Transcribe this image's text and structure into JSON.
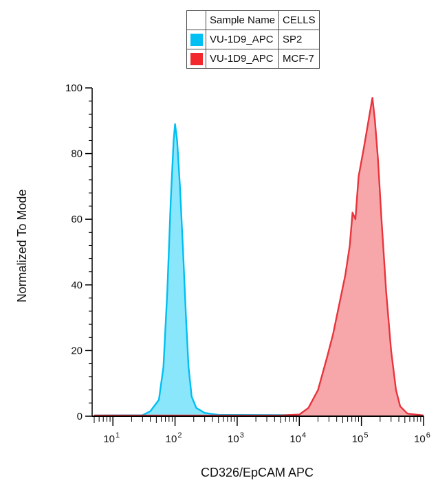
{
  "legend": {
    "header": {
      "col1": "Sample Name",
      "col2": "CELLS"
    },
    "rows": [
      {
        "sample": "VU-1D9_APC",
        "cells": "SP2",
        "color": "#00bff3"
      },
      {
        "sample": "VU-1D9_APC",
        "cells": "MCF-7",
        "color": "#f2282e"
      }
    ]
  },
  "chart_data": {
    "type": "area",
    "xlabel": "CD326/EpCAM APC",
    "ylabel": "Normalized To Mode",
    "xscale": "log",
    "xlim": [
      5,
      1000000
    ],
    "ylim": [
      0,
      100
    ],
    "yticks": [
      "0",
      "20",
      "40",
      "60",
      "80",
      "100"
    ],
    "xticks": [
      {
        "base": "10",
        "exp": "1"
      },
      {
        "base": "10",
        "exp": "2"
      },
      {
        "base": "10",
        "exp": "3"
      },
      {
        "base": "10",
        "exp": "4"
      },
      {
        "base": "10",
        "exp": "5"
      },
      {
        "base": "10",
        "exp": "6"
      }
    ],
    "grid": false,
    "series": [
      {
        "name": "SP2",
        "color": "#00bff3",
        "fill": "#8ae6fa",
        "points": [
          [
            5,
            0.2
          ],
          [
            30,
            0.3
          ],
          [
            40,
            1.5
          ],
          [
            55,
            5
          ],
          [
            65,
            15
          ],
          [
            75,
            38
          ],
          [
            85,
            65
          ],
          [
            95,
            84
          ],
          [
            100,
            89
          ],
          [
            108,
            84
          ],
          [
            120,
            70
          ],
          [
            135,
            50
          ],
          [
            150,
            30
          ],
          [
            165,
            15
          ],
          [
            185,
            6
          ],
          [
            220,
            2.5
          ],
          [
            300,
            1
          ],
          [
            500,
            0.4
          ],
          [
            1000000,
            0.2
          ]
        ]
      },
      {
        "name": "MCF-7",
        "color": "#e8343c",
        "fill": "#f7a7aa",
        "points": [
          [
            5,
            0.2
          ],
          [
            5000,
            0.2
          ],
          [
            10000,
            0.5
          ],
          [
            14000,
            2.5
          ],
          [
            20000,
            8
          ],
          [
            28000,
            18
          ],
          [
            35000,
            25
          ],
          [
            45000,
            35
          ],
          [
            55000,
            43
          ],
          [
            65000,
            52
          ],
          [
            72000,
            62
          ],
          [
            80000,
            60
          ],
          [
            90000,
            73
          ],
          [
            110000,
            82
          ],
          [
            130000,
            90
          ],
          [
            150000,
            97
          ],
          [
            165000,
            90
          ],
          [
            185000,
            78
          ],
          [
            210000,
            60
          ],
          [
            250000,
            38
          ],
          [
            300000,
            20
          ],
          [
            360000,
            8
          ],
          [
            420000,
            3
          ],
          [
            550000,
            0.8
          ],
          [
            1000000,
            0.2
          ]
        ]
      }
    ]
  }
}
